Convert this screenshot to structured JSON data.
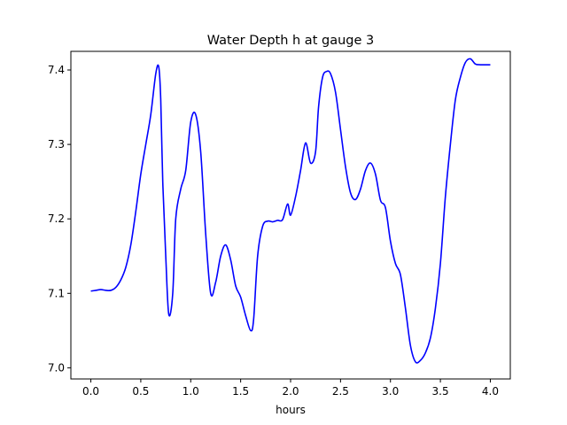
{
  "chart_data": {
    "type": "line",
    "title": "Water Depth h at gauge 3",
    "xlabel": "hours",
    "ylabel": "",
    "xlim": [
      -0.2,
      4.2
    ],
    "ylim": [
      6.985,
      7.425
    ],
    "grid": false,
    "line_color": "#0000ff",
    "xticks": [
      {
        "value": 0.0,
        "label": "0.0"
      },
      {
        "value": 0.5,
        "label": "0.5"
      },
      {
        "value": 1.0,
        "label": "1.0"
      },
      {
        "value": 1.5,
        "label": "1.5"
      },
      {
        "value": 2.0,
        "label": "2.0"
      },
      {
        "value": 2.5,
        "label": "2.5"
      },
      {
        "value": 3.0,
        "label": "3.0"
      },
      {
        "value": 3.5,
        "label": "3.5"
      },
      {
        "value": 4.0,
        "label": "4.0"
      }
    ],
    "yticks": [
      {
        "value": 7.0,
        "label": "7.0"
      },
      {
        "value": 7.1,
        "label": "7.1"
      },
      {
        "value": 7.2,
        "label": "7.2"
      },
      {
        "value": 7.3,
        "label": "7.3"
      },
      {
        "value": 7.4,
        "label": "7.4"
      }
    ],
    "x": [
      0.0,
      0.05,
      0.1,
      0.15,
      0.2,
      0.25,
      0.3,
      0.35,
      0.4,
      0.45,
      0.5,
      0.55,
      0.6,
      0.65,
      0.68,
      0.7,
      0.72,
      0.75,
      0.78,
      0.82,
      0.85,
      0.9,
      0.95,
      1.0,
      1.05,
      1.1,
      1.15,
      1.2,
      1.25,
      1.3,
      1.35,
      1.4,
      1.45,
      1.5,
      1.55,
      1.6,
      1.63,
      1.67,
      1.72,
      1.77,
      1.82,
      1.87,
      1.92,
      1.97,
      2.0,
      2.05,
      2.1,
      2.15,
      2.2,
      2.25,
      2.28,
      2.32,
      2.36,
      2.4,
      2.45,
      2.5,
      2.55,
      2.6,
      2.65,
      2.7,
      2.75,
      2.8,
      2.85,
      2.9,
      2.95,
      3.0,
      3.05,
      3.1,
      3.15,
      3.2,
      3.25,
      3.3,
      3.35,
      3.4,
      3.45,
      3.5,
      3.55,
      3.6,
      3.65,
      3.7,
      3.75,
      3.8,
      3.85,
      3.9,
      3.95,
      4.0
    ],
    "values": [
      7.103,
      7.104,
      7.105,
      7.104,
      7.104,
      7.108,
      7.118,
      7.135,
      7.165,
      7.21,
      7.26,
      7.3,
      7.34,
      7.395,
      7.404,
      7.36,
      7.25,
      7.15,
      7.072,
      7.1,
      7.2,
      7.24,
      7.265,
      7.33,
      7.34,
      7.29,
      7.18,
      7.1,
      7.115,
      7.15,
      7.165,
      7.145,
      7.11,
      7.095,
      7.07,
      7.05,
      7.065,
      7.15,
      7.19,
      7.197,
      7.196,
      7.198,
      7.199,
      7.22,
      7.205,
      7.23,
      7.265,
      7.302,
      7.275,
      7.29,
      7.35,
      7.39,
      7.398,
      7.395,
      7.37,
      7.32,
      7.27,
      7.235,
      7.226,
      7.24,
      7.265,
      7.275,
      7.26,
      7.225,
      7.215,
      7.17,
      7.14,
      7.125,
      7.08,
      7.03,
      7.008,
      7.01,
      7.02,
      7.04,
      7.08,
      7.14,
      7.23,
      7.3,
      7.36,
      7.39,
      7.41,
      7.415,
      7.408,
      7.407,
      7.407,
      7.407
    ]
  }
}
